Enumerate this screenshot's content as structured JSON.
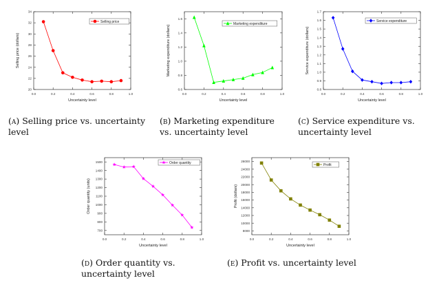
{
  "chart_data": [
    {
      "id": "a",
      "type": "line",
      "xlabel": "Uncertainty level",
      "ylabel": "Selling price (dollars)",
      "xlim": [
        0.0,
        1.0
      ],
      "ylim": [
        20,
        34
      ],
      "xticks": [
        "0.0",
        "0.2",
        "0.4",
        "0.6",
        "0.8",
        "1.0"
      ],
      "yticks": [
        "20",
        "22",
        "24",
        "26",
        "28",
        "30",
        "32",
        "34"
      ],
      "legend_placement": "top-right",
      "marker": "circle",
      "series": [
        {
          "name": "Selling price",
          "color": "#ff0000",
          "x": [
            0.1,
            0.2,
            0.3,
            0.4,
            0.5,
            0.6,
            0.7,
            0.8,
            0.9
          ],
          "y": [
            32.2,
            27.0,
            23.0,
            22.2,
            21.7,
            21.4,
            21.5,
            21.4,
            21.6
          ]
        }
      ],
      "caption_label": "(a)",
      "caption": " Selling price vs. uncertainty level"
    },
    {
      "id": "b",
      "type": "line",
      "xlabel": "Uncertainty level",
      "ylabel": "Marketing expenditure (dollars)",
      "xlim": [
        0.0,
        1.0
      ],
      "ylim": [
        0.6,
        1.7
      ],
      "xticks": [
        "0.0",
        "0.2",
        "0.4",
        "0.6",
        "0.8",
        "1.0"
      ],
      "yticks": [
        "0.6",
        "0.8",
        "1.0",
        "1.2",
        "1.4",
        "1.6"
      ],
      "legend_placement": "top-right",
      "marker": "triangle",
      "series": [
        {
          "name": "Marketing expenditure",
          "color": "#00ff00",
          "x": [
            0.1,
            0.2,
            0.3,
            0.4,
            0.5,
            0.6,
            0.7,
            0.8,
            0.9
          ],
          "y": [
            1.62,
            1.22,
            0.7,
            0.72,
            0.74,
            0.76,
            0.81,
            0.84,
            0.91
          ]
        }
      ],
      "caption_label": "(b)",
      "caption": " Marketing expenditure vs. uncertainty level"
    },
    {
      "id": "c",
      "type": "line",
      "xlabel": "Uncertainty level",
      "ylabel": "Service expenditure (dollars)",
      "xlim": [
        0.0,
        1.0
      ],
      "ylim": [
        0.8,
        1.7
      ],
      "xticks": [
        "0.0",
        "0.2",
        "0.4",
        "0.6",
        "0.8",
        "1.0"
      ],
      "yticks": [
        "0.8",
        "0.9",
        "1.0",
        "1.1",
        "1.2",
        "1.3",
        "1.4",
        "1.5",
        "1.6",
        "1.7"
      ],
      "legend_placement": "top-right",
      "marker": "diamond",
      "series": [
        {
          "name": "Service expenditure",
          "color": "#0000ff",
          "x": [
            0.1,
            0.2,
            0.3,
            0.4,
            0.5,
            0.6,
            0.7,
            0.8,
            0.9
          ],
          "y": [
            1.63,
            1.27,
            1.01,
            0.91,
            0.89,
            0.87,
            0.88,
            0.88,
            0.89
          ]
        }
      ],
      "caption_label": "(c)",
      "caption": " Service expenditure vs. uncertainty level"
    },
    {
      "id": "d",
      "type": "line",
      "xlabel": "Uncertainty level",
      "ylabel": "Order quantity (units)",
      "xlim": [
        0.0,
        1.0
      ],
      "ylim": [
        650,
        1550
      ],
      "xticks": [
        "0.0",
        "0.2",
        "0.4",
        "0.6",
        "0.8",
        "1.0"
      ],
      "yticks": [
        "700",
        "800",
        "900",
        "1000",
        "1100",
        "1200",
        "1300",
        "1400",
        "1500"
      ],
      "legend_placement": "top-right",
      "marker": "star",
      "series": [
        {
          "name": "Order quantity",
          "color": "#ff00ff",
          "x": [
            0.1,
            0.2,
            0.3,
            0.4,
            0.5,
            0.6,
            0.7,
            0.8,
            0.9
          ],
          "y": [
            1470,
            1440,
            1445,
            1305,
            1215,
            1115,
            995,
            880,
            735
          ]
        }
      ],
      "caption_label": "(d)",
      "caption": " Order quantity vs. uncertainty level"
    },
    {
      "id": "e",
      "type": "line",
      "xlabel": "Uncertainty level",
      "ylabel": "Profit (dollars)",
      "xlim": [
        0.0,
        1.0
      ],
      "ylim": [
        7000,
        27000
      ],
      "xticks": [
        "0.0",
        "0.2",
        "0.4",
        "0.6",
        "0.8",
        "1.0"
      ],
      "yticks": [
        "8000",
        "10000",
        "12000",
        "14000",
        "16000",
        "18000",
        "20000",
        "22000",
        "24000",
        "26000"
      ],
      "legend_placement": "top-right",
      "marker": "square",
      "series": [
        {
          "name": "Profit",
          "color": "#808000",
          "x": [
            0.1,
            0.2,
            0.3,
            0.4,
            0.5,
            0.6,
            0.7,
            0.8,
            0.9
          ],
          "y": [
            25600,
            21200,
            18400,
            16300,
            14700,
            13400,
            12200,
            10800,
            9200
          ]
        }
      ],
      "caption_label": "(e)",
      "caption": " Profit vs. uncertainty level"
    }
  ]
}
